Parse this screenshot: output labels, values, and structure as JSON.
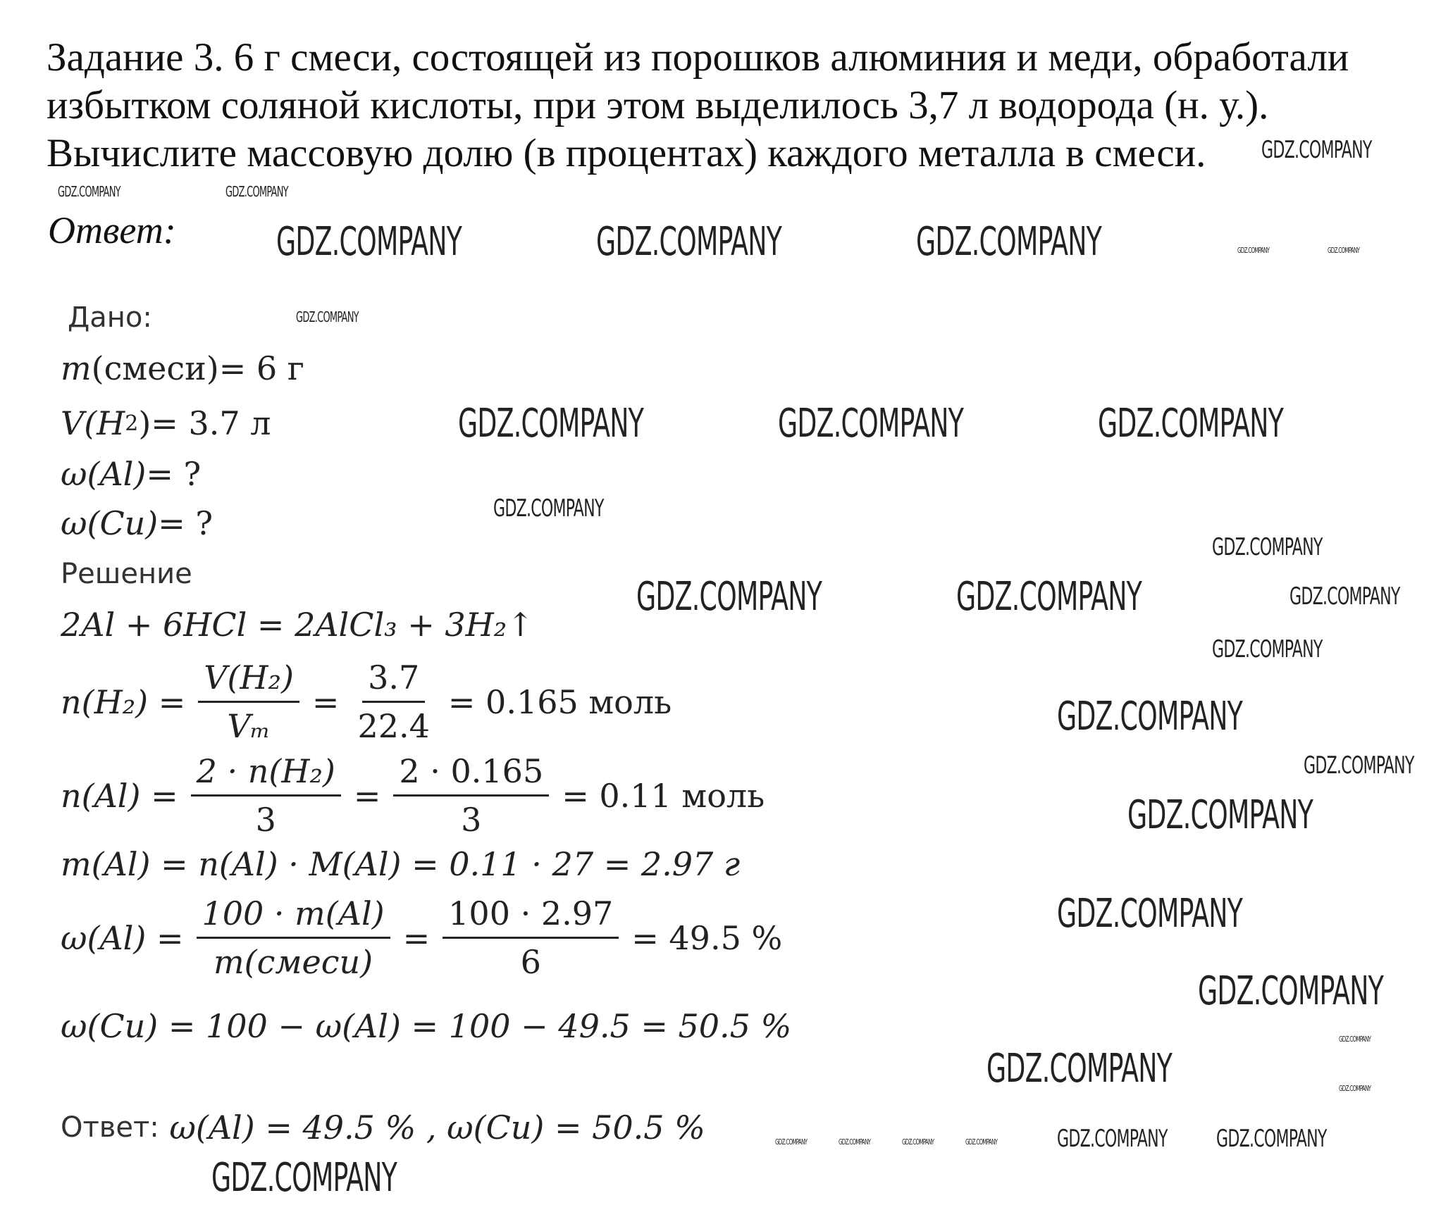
{
  "task": {
    "lines": [
      "Задание 3. 6 г смеси, состоящей из порошков алюминия и меди, обработали",
      "избытком соляной кислоты, при этом выделилось 3,7 л водорода (н. у.).",
      "Вычислите массовую долю (в процентах) каждого металла в смеси."
    ]
  },
  "answer_label": "Ответ:",
  "solution": {
    "given_label": "Дано:",
    "given": {
      "mass_mix": {
        "lhs": "m",
        "arg": "(смеси)",
        "rhs": " = 6 г"
      },
      "volume_h2": {
        "lhs": "V",
        "arg": "(H",
        "sub": "2",
        "close": ")",
        "rhs": " = 3.7 л"
      },
      "w_al": {
        "lhs": "ω(Al)",
        "rhs": " = ?"
      },
      "w_cu": {
        "lhs": "ω(Cu)",
        "rhs": " = ?"
      }
    },
    "solution_label": "Решение",
    "reaction": "2Al + 6HCl = 2AlCl₃ + 3H₂↑",
    "n_h2": {
      "lhs": "n(H₂) =",
      "f1_num": "V(H₂)",
      "f1_den": "Vₘ",
      "eq": "=",
      "f2_num": "3.7",
      "f2_den": "22.4",
      "rhs": "= 0.165 моль"
    },
    "n_al": {
      "lhs": "n(Al) =",
      "f1_num": "2 · n(H₂)",
      "f1_den": "3",
      "eq": "=",
      "f2_num": "2 · 0.165",
      "f2_den": "3",
      "rhs": "= 0.11 моль"
    },
    "m_al": "m(Al) = n(Al) · M(Al) = 0.11 · 27 = 2.97 г",
    "w_al_calc": {
      "lhs": "ω(Al) =",
      "f1_num": "100 · m(Al)",
      "f1_den": "m(смеси)",
      "eq": "=",
      "f2_num": "100 · 2.97",
      "f2_den": "6",
      "rhs": "= 49.5 %"
    },
    "w_cu_calc": "ω(Cu) = 100 − ω(Al) = 100 − 49.5 = 50.5 %",
    "final_label": "Ответ:",
    "final": "ω(Al) = 49.5 % , ω(Cu) = 50.5 %"
  },
  "watermark": "GDZ.COMPANY"
}
